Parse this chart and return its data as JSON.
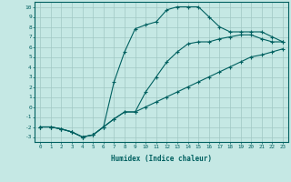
{
  "xlabel": "Humidex (Indice chaleur)",
  "xlim": [
    -0.5,
    23.5
  ],
  "ylim": [
    -3.5,
    10.5
  ],
  "xticks": [
    0,
    1,
    2,
    3,
    4,
    5,
    6,
    7,
    8,
    9,
    10,
    11,
    12,
    13,
    14,
    15,
    16,
    17,
    18,
    19,
    20,
    21,
    22,
    23
  ],
  "yticks": [
    -3,
    -2,
    -1,
    0,
    1,
    2,
    3,
    4,
    5,
    6,
    7,
    8,
    9,
    10
  ],
  "bg_color": "#c5e8e4",
  "grid_color": "#a0c8c4",
  "line_color": "#006060",
  "line1_x": [
    0,
    1,
    2,
    3,
    4,
    5,
    6,
    7,
    8,
    9,
    10,
    11,
    12,
    13,
    14,
    15,
    16,
    17,
    18,
    19,
    20,
    21,
    22,
    23
  ],
  "line1_y": [
    -2,
    -2,
    -2.2,
    -2.5,
    -3,
    -2.8,
    -2,
    -1.2,
    -0.5,
    -0.5,
    0,
    0.5,
    1,
    1.5,
    2,
    2.5,
    3,
    3.5,
    4,
    4.5,
    5,
    5.2,
    5.5,
    5.8
  ],
  "line2_x": [
    0,
    1,
    2,
    3,
    4,
    5,
    6,
    7,
    8,
    9,
    10,
    11,
    12,
    13,
    14,
    15,
    16,
    17,
    18,
    19,
    20,
    21,
    22,
    23
  ],
  "line2_y": [
    -2,
    -2,
    -2.2,
    -2.5,
    -3,
    -2.8,
    -2,
    2.5,
    5.5,
    7.8,
    8.2,
    8.5,
    9.7,
    10,
    10,
    10,
    9,
    8,
    7.5,
    7.5,
    7.5,
    7.5,
    7,
    6.5
  ],
  "line3_x": [
    0,
    1,
    2,
    3,
    4,
    5,
    6,
    7,
    8,
    9,
    10,
    11,
    12,
    13,
    14,
    15,
    16,
    17,
    18,
    19,
    20,
    21,
    22,
    23
  ],
  "line3_y": [
    -2,
    -2,
    -2.2,
    -2.5,
    -3,
    -2.8,
    -2,
    -1.2,
    -0.5,
    -0.5,
    1.5,
    3,
    4.5,
    5.5,
    6.3,
    6.5,
    6.5,
    6.8,
    7,
    7.2,
    7.2,
    6.8,
    6.5,
    6.5
  ]
}
